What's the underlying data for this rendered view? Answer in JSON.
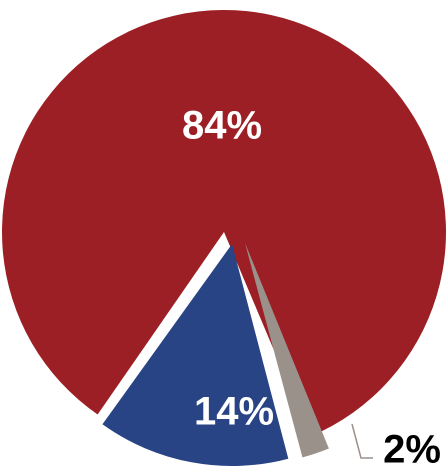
{
  "chart_data": {
    "type": "pie",
    "title": "",
    "categories": [
      "",
      "",
      ""
    ],
    "values": [
      84,
      14,
      2
    ],
    "labels": [
      "84%",
      "14%",
      "2%"
    ],
    "colors": [
      "#9b1f25",
      "#284485",
      "#9a918b"
    ],
    "label_colors": [
      "#ffffff",
      "#ffffff",
      "#000000"
    ],
    "exploded": true,
    "legend": "none"
  }
}
